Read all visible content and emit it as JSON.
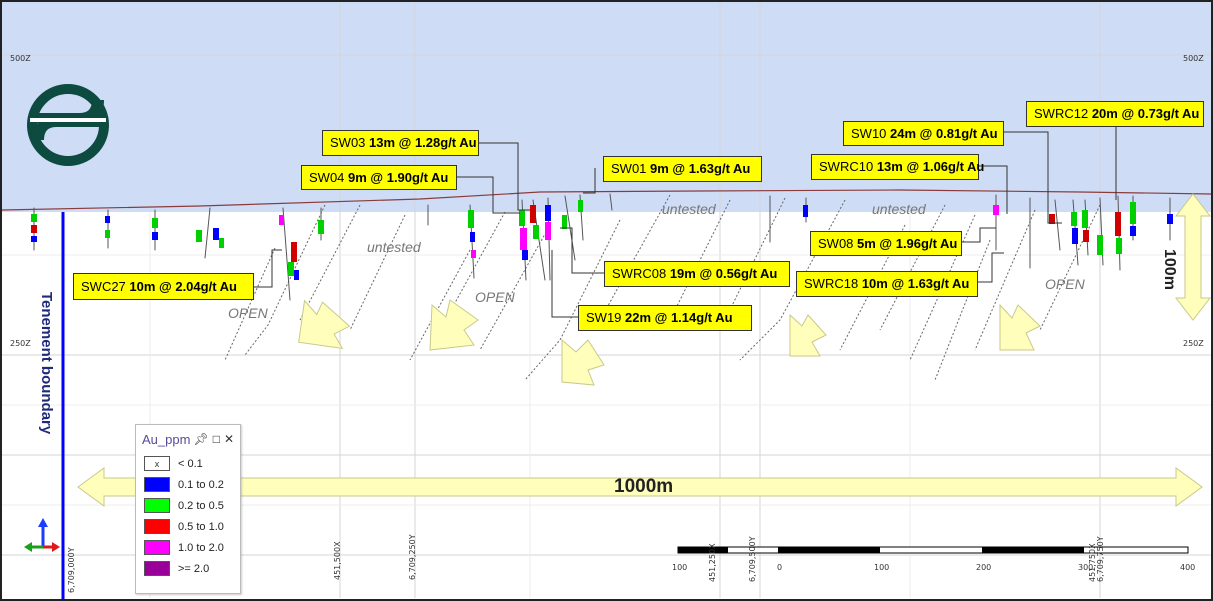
{
  "view": {
    "elev_top": "500Z",
    "elev_mid": "250Z",
    "tenement": "Tenement boundary",
    "scale_width": "1000m",
    "scale_height": "100m",
    "zone_untested": "untested",
    "zone_open": "OPEN"
  },
  "callouts": [
    {
      "hole": "SW03",
      "interval": "13m @ 1.28g/t Au"
    },
    {
      "hole": "SW04",
      "interval": "9m @ 1.90g/t Au"
    },
    {
      "hole": "SW01",
      "interval": "9m @ 1.63g/t Au"
    },
    {
      "hole": "SW10",
      "interval": "24m @ 0.81g/t Au"
    },
    {
      "hole": "SWRC12",
      "interval": "20m @ 0.73g/t Au"
    },
    {
      "hole": "SWRC10",
      "interval": "13m @ 1.06g/t Au"
    },
    {
      "hole": "SW08",
      "interval": "5m @ 1.96g/t Au"
    },
    {
      "hole": "SWC27",
      "interval": "10m @ 2.04g/t Au"
    },
    {
      "hole": "SWRC08",
      "interval": "19m @ 0.56g/t Au"
    },
    {
      "hole": "SWRC18",
      "interval": "10m @ 1.63g/t Au"
    },
    {
      "hole": "SW19",
      "interval": "22m @ 1.14g/t Au"
    }
  ],
  "axis_labels": [
    "6,709,000Y",
    "451,500X",
    "6,709,250Y",
    "451,250X",
    "6,709,500Y",
    "451,750X",
    "6,709,750Y"
  ],
  "scalebar": [
    "100",
    "0",
    "100",
    "200",
    "300",
    "400"
  ],
  "legend": {
    "title": "Au_ppm",
    "pin_icon": "pin-icon",
    "items": [
      {
        "label": "< 0.1",
        "color": "#ffffff",
        "mark": "x"
      },
      {
        "label": "0.1 to 0.2",
        "color": "#0000ff",
        "mark": ""
      },
      {
        "label": "0.2 to 0.5",
        "color": "#00ff00",
        "mark": ""
      },
      {
        "label": "0.5 to 1.0",
        "color": "#ff0000",
        "mark": ""
      },
      {
        "label": "1.0 to 2.0",
        "color": "#ff00ff",
        "mark": ""
      },
      {
        "label": ">= 2.0",
        "color": "#990099",
        "mark": ""
      }
    ]
  },
  "colors": {
    "sky": "#cfdcf6",
    "callout": "#ffff00",
    "arrow": "#ffffbb",
    "boundary": "#0000ff",
    "logo": "#0d4a3f"
  }
}
